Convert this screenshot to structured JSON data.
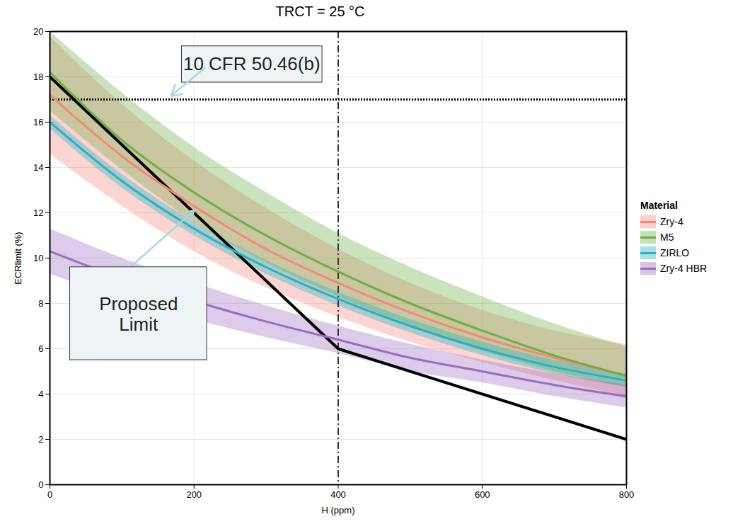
{
  "chart_data": {
    "type": "line",
    "title": "TRCT = 25 °C",
    "x_label": "H (ppm)",
    "y_label": "ECRlimit (%)",
    "xlim": [
      0,
      800
    ],
    "xticks": [
      0,
      200,
      400,
      600,
      800
    ],
    "ylim": [
      0,
      20
    ],
    "yticks": [
      0,
      2,
      4,
      6,
      8,
      10,
      12,
      14,
      16,
      18,
      20
    ],
    "grid": true,
    "legend": "right",
    "legend_title": "Material",
    "x": [
      0,
      100,
      200,
      300,
      400,
      500,
      600,
      700,
      800
    ],
    "series": [
      {
        "name": "Zry-4",
        "color": "#f4877a",
        "values": [
          17.2,
          14.5,
          12.3,
          10.4,
          8.9,
          7.6,
          6.5,
          5.6,
          4.8
        ],
        "band_lower": [
          14.6,
          12.3,
          10.3,
          8.7,
          7.4,
          6.3,
          5.4,
          4.6,
          3.9
        ],
        "band_upper": [
          19.8,
          16.8,
          14.3,
          12.2,
          10.4,
          8.9,
          7.7,
          6.8,
          6.2
        ]
      },
      {
        "name": "M5",
        "color": "#6ab043",
        "values": [
          18.2,
          15.2,
          12.9,
          11.0,
          9.4,
          8.0,
          6.8,
          5.7,
          4.8
        ],
        "band_lower": [
          16.5,
          13.9,
          11.6,
          9.8,
          8.3,
          7.0,
          5.9,
          5.0,
          4.3
        ],
        "band_upper": [
          20.0,
          17.3,
          14.9,
          12.9,
          11.1,
          9.6,
          8.3,
          7.1,
          6.1
        ]
      },
      {
        "name": "ZIRLO",
        "color": "#1fb5c4",
        "values": [
          16.0,
          13.4,
          11.3,
          9.6,
          8.2,
          7.0,
          6.0,
          5.2,
          4.6
        ],
        "band_lower": [
          15.7,
          13.1,
          11.0,
          9.3,
          7.9,
          6.7,
          5.7,
          4.9,
          4.3
        ],
        "band_upper": [
          16.3,
          13.7,
          11.6,
          9.9,
          8.5,
          7.3,
          6.3,
          5.5,
          4.9
        ]
      },
      {
        "name": "Zry-4 HBR",
        "color": "#9b6bbf",
        "values": [
          10.3,
          9.1,
          8.1,
          7.2,
          6.4,
          5.6,
          5.0,
          4.4,
          3.9
        ],
        "band_lower": [
          9.3,
          8.2,
          7.3,
          6.5,
          5.8,
          5.0,
          4.5,
          3.9,
          3.4
        ],
        "band_upper": [
          11.3,
          10.0,
          8.9,
          7.9,
          7.0,
          6.2,
          5.5,
          4.9,
          4.4
        ]
      }
    ],
    "proposed_limit": {
      "label": "Proposed Limit",
      "color": "#000000",
      "x": [
        0,
        400,
        800
      ],
      "values": [
        18,
        6,
        2
      ]
    },
    "regulatory_limit": {
      "label": "10 CFR 50.46(b)",
      "value": 17,
      "line_style": "dotted"
    },
    "vertical_line": {
      "x": 400,
      "line_style": "dashdot"
    }
  }
}
